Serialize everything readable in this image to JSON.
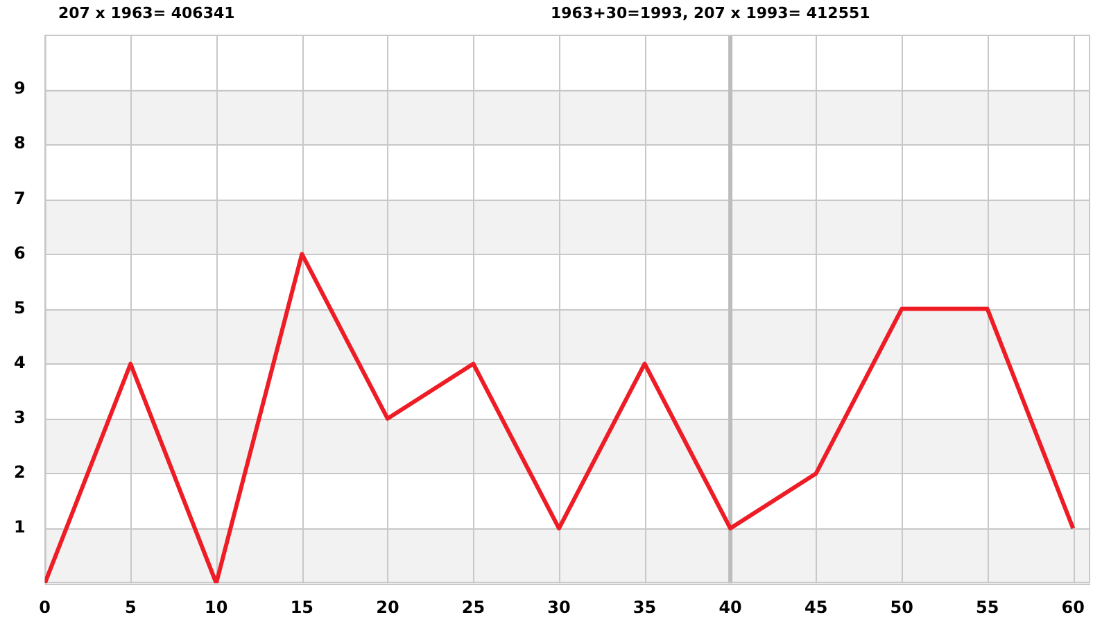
{
  "chart_data": {
    "type": "line",
    "annotations": [
      "207 x 1963= 406341",
      "1963+30=1993, 207 x 1993= 412551"
    ],
    "x": [
      0,
      5,
      10,
      15,
      20,
      25,
      30,
      35,
      40,
      45,
      50,
      55,
      60
    ],
    "series": [
      {
        "color": "#ee1c25",
        "values": [
          0,
          4,
          0,
          6,
          3,
          4,
          1,
          4,
          1,
          2,
          5,
          5,
          1
        ]
      }
    ],
    "xlim": [
      0,
      61
    ],
    "xticks": [
      0,
      5,
      10,
      15,
      20,
      25,
      30,
      35,
      40,
      45,
      50,
      55,
      60
    ],
    "ylim": [
      0,
      10
    ],
    "yticks": [
      {
        "value": 0,
        "label": null
      },
      1,
      2,
      3,
      4,
      5,
      6,
      7,
      8,
      9,
      {
        "value": 10,
        "label": null
      }
    ],
    "bands": [
      {
        "axis": "y",
        "from": 0,
        "to": 1,
        "color": "#f2f2f2"
      },
      {
        "axis": "y",
        "from": 2,
        "to": 3,
        "color": "#f2f2f2"
      },
      {
        "axis": "y",
        "from": 4,
        "to": 5,
        "color": "#f2f2f2"
      },
      {
        "axis": "y",
        "from": 6,
        "to": 7,
        "color": "#f2f2f2"
      },
      {
        "axis": "y",
        "from": 8,
        "to": 9,
        "color": "#f2f2f2"
      }
    ],
    "ref_lines": [
      {
        "axis": "x",
        "value": 40,
        "color": "#bdbdbd"
      }
    ],
    "grid": true,
    "legend": false,
    "marker": "none",
    "line_style": "solid"
  }
}
